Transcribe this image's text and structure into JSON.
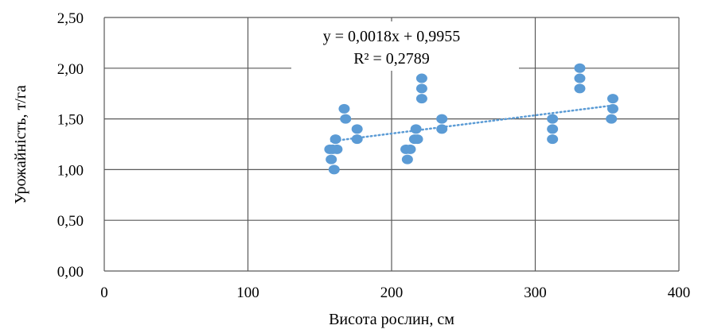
{
  "chart_data": {
    "type": "scatter",
    "title": "",
    "xlabel": "Висота рослин, см",
    "ylabel": "Урожайність, т/га",
    "xlim": [
      0,
      400
    ],
    "ylim": [
      0,
      2.5
    ],
    "x_ticks": [
      "0",
      "100",
      "200",
      "300",
      "400"
    ],
    "y_ticks": [
      "0,00",
      "0,50",
      "1,00",
      "1,50",
      "2,00",
      "2,50"
    ],
    "grid": true,
    "legend": "none",
    "point_color": "#5b9bd5",
    "trendline": {
      "type": "linear",
      "slope": 0.0018,
      "intercept": 0.9955,
      "x_range": [
        158,
        355
      ],
      "color": "#5b9bd5",
      "style": "dotted",
      "equation": "y = 0,0018x + 0,9955",
      "r_squared": "R² = 0,2789"
    },
    "points": [
      {
        "x": 157,
        "y": 1.2
      },
      {
        "x": 158,
        "y": 1.1
      },
      {
        "x": 160,
        "y": 1.0
      },
      {
        "x": 161,
        "y": 1.3
      },
      {
        "x": 162,
        "y": 1.2
      },
      {
        "x": 159,
        "y": 1.2
      },
      {
        "x": 167,
        "y": 1.6
      },
      {
        "x": 168,
        "y": 1.5
      },
      {
        "x": 176,
        "y": 1.4
      },
      {
        "x": 176,
        "y": 1.3
      },
      {
        "x": 210,
        "y": 1.2
      },
      {
        "x": 211,
        "y": 1.1
      },
      {
        "x": 213,
        "y": 1.2
      },
      {
        "x": 216,
        "y": 1.3
      },
      {
        "x": 217,
        "y": 1.4
      },
      {
        "x": 218,
        "y": 1.3
      },
      {
        "x": 221,
        "y": 1.9
      },
      {
        "x": 221,
        "y": 1.8
      },
      {
        "x": 221,
        "y": 1.7
      },
      {
        "x": 235,
        "y": 1.5
      },
      {
        "x": 235,
        "y": 1.4
      },
      {
        "x": 312,
        "y": 1.5
      },
      {
        "x": 312,
        "y": 1.4
      },
      {
        "x": 312,
        "y": 1.3
      },
      {
        "x": 331,
        "y": 2.0
      },
      {
        "x": 331,
        "y": 1.9
      },
      {
        "x": 331,
        "y": 1.8
      },
      {
        "x": 354,
        "y": 1.7
      },
      {
        "x": 354,
        "y": 1.6
      },
      {
        "x": 353,
        "y": 1.5
      }
    ]
  }
}
